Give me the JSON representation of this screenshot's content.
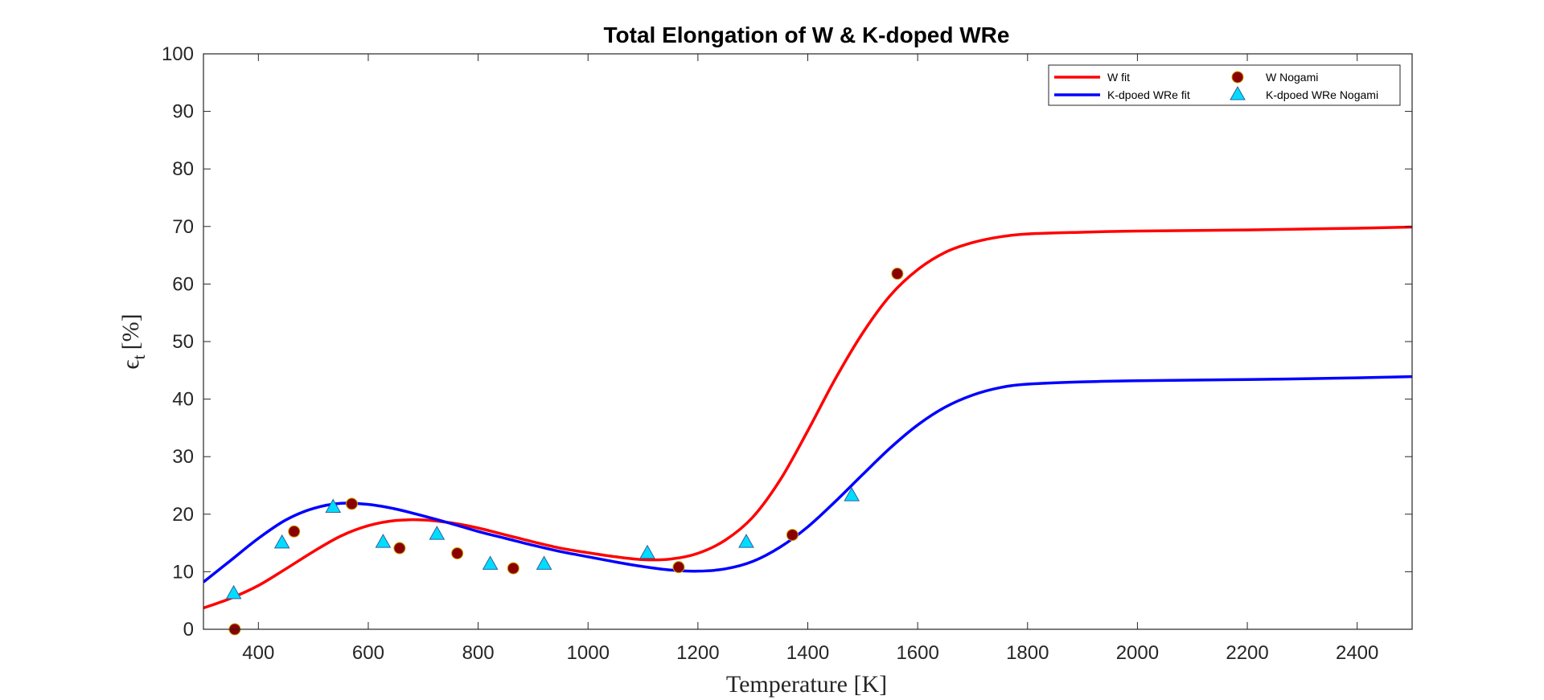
{
  "chart_data": {
    "type": "line",
    "title": "Total Elongation of W & K-doped WRe",
    "xlabel": "Temperature [K]",
    "ylabel_main": "ϵ",
    "ylabel_sub": "t",
    "ylabel_unit": "[%]",
    "xlim": [
      300,
      2500
    ],
    "ylim": [
      0,
      100
    ],
    "xticks": [
      400,
      600,
      800,
      1000,
      1200,
      1400,
      1600,
      1800,
      2000,
      2200,
      2400
    ],
    "yticks": [
      0,
      10,
      20,
      30,
      40,
      50,
      60,
      70,
      80,
      90,
      100
    ],
    "grid": false,
    "legend_position": "top-right",
    "colors": {
      "w_fit": "#ff0000",
      "wre_fit": "#0000ff",
      "w_marker_fill": "#8b0000",
      "w_marker_edge": "#c8a000",
      "wre_marker_fill": "#00ddff",
      "wre_marker_edge": "#3060a0"
    },
    "series": [
      {
        "name": "W fit",
        "kind": "line",
        "x": [
          300,
          350,
          400,
          450,
          500,
          550,
          600,
          650,
          700,
          750,
          800,
          850,
          900,
          950,
          1000,
          1050,
          1100,
          1150,
          1200,
          1250,
          1300,
          1350,
          1400,
          1450,
          1500,
          1550,
          1600,
          1650,
          1700,
          1750,
          1800,
          1900,
          2000,
          2200,
          2400,
          2500
        ],
        "y": [
          3.7,
          5.4,
          7.6,
          10.5,
          13.5,
          16.2,
          18.0,
          18.9,
          19.0,
          18.5,
          17.6,
          16.4,
          15.2,
          14.1,
          13.3,
          12.6,
          12.1,
          12.2,
          13.2,
          15.5,
          19.5,
          26.0,
          34.5,
          43.5,
          51.5,
          58.0,
          62.5,
          65.5,
          67.2,
          68.2,
          68.7,
          69.0,
          69.2,
          69.4,
          69.7,
          69.9
        ]
      },
      {
        "name": "K-dpoed WRe fit",
        "kind": "line",
        "x": [
          300,
          350,
          400,
          450,
          500,
          550,
          600,
          650,
          700,
          750,
          800,
          850,
          900,
          950,
          1000,
          1050,
          1100,
          1150,
          1200,
          1250,
          1300,
          1350,
          1400,
          1450,
          1500,
          1550,
          1600,
          1650,
          1700,
          1750,
          1800,
          1900,
          2000,
          2200,
          2400,
          2500
        ],
        "y": [
          8.2,
          12.0,
          15.8,
          19.0,
          21.0,
          21.9,
          21.7,
          20.9,
          19.7,
          18.4,
          17.0,
          15.8,
          14.6,
          13.5,
          12.6,
          11.7,
          10.9,
          10.3,
          10.1,
          10.5,
          11.8,
          14.3,
          17.8,
          22.2,
          26.9,
          31.5,
          35.5,
          38.6,
          40.7,
          42.0,
          42.6,
          43.0,
          43.2,
          43.4,
          43.7,
          43.9
        ]
      },
      {
        "name": "W Nogami",
        "kind": "scatter",
        "marker": "circle",
        "x": [
          357,
          465,
          570,
          657,
          762,
          864,
          1165,
          1372,
          1563
        ],
        "y": [
          0,
          17.0,
          21.8,
          14.1,
          13.2,
          10.6,
          10.8,
          16.4,
          61.8
        ]
      },
      {
        "name": "K-dpoed WRe Nogami",
        "kind": "scatter",
        "marker": "triangle",
        "x": [
          355,
          443,
          536,
          627,
          725,
          822,
          920,
          1108,
          1288,
          1480
        ],
        "y": [
          6.3,
          15.1,
          21.3,
          15.2,
          16.6,
          11.4,
          11.4,
          13.3,
          15.2,
          23.3
        ]
      }
    ]
  }
}
